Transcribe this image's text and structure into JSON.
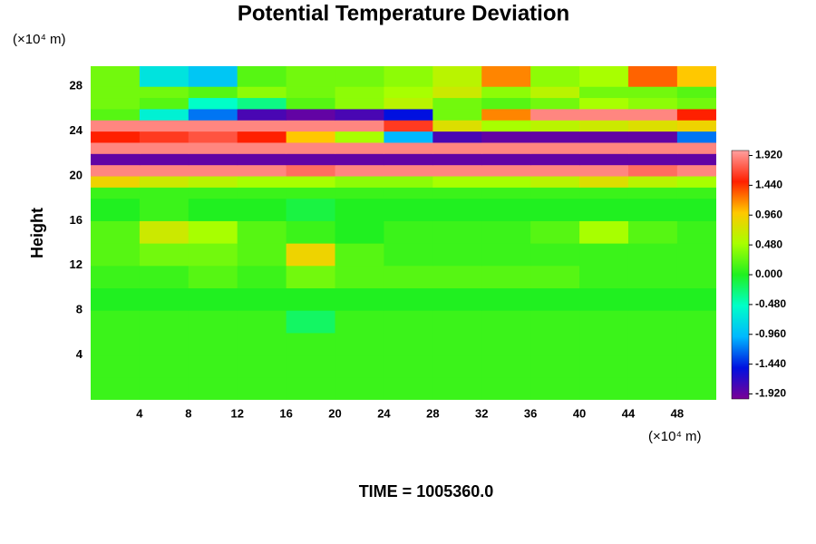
{
  "chart_data": {
    "type": "heatmap",
    "title": "Potential Temperature Deviation",
    "ylabel": "Height",
    "y_unit": "(×10⁴ m)",
    "x_unit": "(×10⁴ m)",
    "footer": "TIME = 1005360.0",
    "xlim": [
      0,
      51.2
    ],
    "ylim": [
      0,
      29.8
    ],
    "xticks": [
      4,
      8,
      12,
      16,
      20,
      24,
      28,
      32,
      36,
      40,
      44,
      48
    ],
    "yticks": [
      4,
      8,
      12,
      16,
      20,
      24,
      28
    ],
    "xbins": [
      0,
      4,
      8,
      12,
      16,
      20,
      24,
      28,
      32,
      36,
      40,
      44,
      48,
      51.2
    ],
    "ybins": [
      0,
      2,
      4,
      6,
      8,
      10,
      12,
      14,
      16,
      18,
      19,
      20,
      21,
      22,
      23,
      24,
      25,
      26,
      27,
      28,
      29.8
    ],
    "values": [
      [
        0.1,
        0.1,
        0.1,
        0.1,
        0.1,
        0.1,
        0.1,
        0.1,
        0.1,
        0.1,
        0.1,
        0.1,
        0.1
      ],
      [
        0.1,
        0.1,
        0.1,
        0.1,
        0.1,
        0.1,
        0.1,
        0.1,
        0.1,
        0.1,
        0.1,
        0.1,
        0.1
      ],
      [
        0.1,
        0.1,
        0.1,
        0.1,
        0.1,
        0.1,
        0.1,
        0.1,
        0.1,
        0.1,
        0.1,
        0.1,
        0.1
      ],
      [
        0.1,
        0.1,
        0.1,
        0.1,
        -0.2,
        0.1,
        0.1,
        0.1,
        0.1,
        0.1,
        0.1,
        0.1,
        0.1
      ],
      [
        0.0,
        0.0,
        0.0,
        0.0,
        0.0,
        0.0,
        0.0,
        0.0,
        0.0,
        0.0,
        0.0,
        0.0,
        0.0
      ],
      [
        0.1,
        0.1,
        0.2,
        0.1,
        0.3,
        0.2,
        0.2,
        0.2,
        0.2,
        0.2,
        0.1,
        0.1,
        0.1
      ],
      [
        0.2,
        0.3,
        0.3,
        0.2,
        0.9,
        0.2,
        0.1,
        0.1,
        0.1,
        0.1,
        0.1,
        0.1,
        0.1
      ],
      [
        0.2,
        0.7,
        0.5,
        0.2,
        0.1,
        0.0,
        0.1,
        0.1,
        0.1,
        0.2,
        0.5,
        0.2,
        0.1
      ],
      [
        0.0,
        0.1,
        0.0,
        0.0,
        -0.1,
        0.0,
        0.0,
        0.0,
        0.0,
        0.0,
        0.0,
        0.0,
        0.0
      ],
      [
        0.1,
        0.1,
        0.1,
        0.1,
        0.1,
        0.1,
        0.1,
        0.1,
        0.1,
        0.1,
        0.1,
        0.1,
        0.1
      ],
      [
        0.9,
        0.7,
        0.6,
        0.5,
        0.5,
        0.4,
        0.4,
        0.5,
        0.5,
        0.6,
        0.8,
        0.6,
        0.5
      ],
      [
        1.9,
        1.9,
        1.9,
        1.9,
        1.8,
        1.9,
        1.9,
        1.9,
        1.9,
        1.9,
        1.9,
        1.8,
        1.9
      ],
      [
        -1.9,
        -1.9,
        -1.9,
        -1.9,
        -1.9,
        -1.9,
        -1.9,
        -1.9,
        -1.9,
        -1.9,
        -1.9,
        -1.9,
        -1.9
      ],
      [
        1.9,
        1.9,
        1.9,
        1.9,
        1.9,
        1.9,
        1.9,
        1.9,
        1.9,
        1.9,
        1.9,
        1.9,
        1.9
      ],
      [
        1.5,
        1.6,
        1.7,
        1.5,
        1.0,
        0.5,
        -1.0,
        -1.8,
        -1.9,
        -1.9,
        -1.9,
        -1.9,
        -1.2
      ],
      [
        1.9,
        1.9,
        1.9,
        1.9,
        1.9,
        1.9,
        1.6,
        0.8,
        0.5,
        0.6,
        0.7,
        0.8,
        0.9
      ],
      [
        0.2,
        -0.6,
        -1.2,
        -1.8,
        -1.9,
        -1.8,
        -1.5,
        0.3,
        1.2,
        1.9,
        1.9,
        1.9,
        1.5
      ],
      [
        0.3,
        0.2,
        -0.5,
        -0.3,
        0.2,
        0.4,
        0.6,
        0.3,
        0.2,
        0.3,
        0.5,
        0.4,
        0.3
      ],
      [
        0.3,
        0.3,
        0.2,
        0.4,
        0.3,
        0.4,
        0.5,
        0.7,
        0.4,
        0.6,
        0.3,
        0.3,
        0.2
      ],
      [
        0.3,
        -0.7,
        -0.9,
        0.2,
        0.3,
        0.3,
        0.4,
        0.6,
        1.2,
        0.4,
        0.5,
        1.3,
        1.0
      ]
    ],
    "clim": [
      -2.0,
      2.0
    ],
    "colormap": [
      "#7a0095",
      "#0010e0",
      "#00b8ff",
      "#00ffc8",
      "#20f020",
      "#a8ff00",
      "#ffc800",
      "#ff2000",
      "#ffa0a0"
    ],
    "cticks": [
      {
        "value": 1.92,
        "label": "1.920"
      },
      {
        "value": 1.44,
        "label": "1.440"
      },
      {
        "value": 0.96,
        "label": "0.960"
      },
      {
        "value": 0.48,
        "label": "0.480"
      },
      {
        "value": 0,
        "label": "0.000"
      },
      {
        "value": -0.48,
        "label": "-0.480"
      },
      {
        "value": -0.96,
        "label": "-0.960"
      },
      {
        "value": -1.44,
        "label": "-1.440"
      },
      {
        "value": -1.92,
        "label": "-1.920"
      }
    ]
  }
}
